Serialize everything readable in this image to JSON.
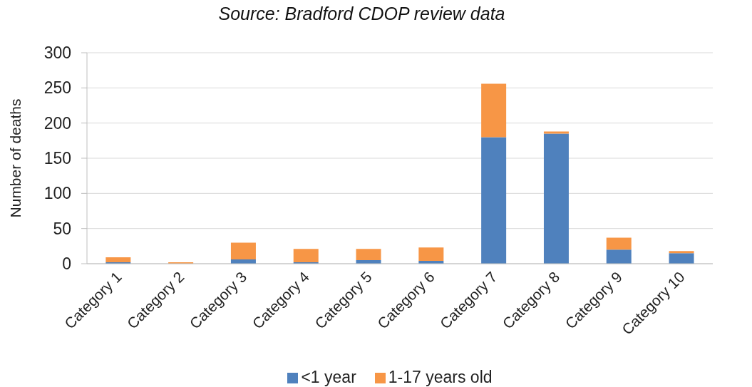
{
  "chart_data": {
    "type": "bar",
    "annotations": [
      "Source: Bradford CDOP review data"
    ],
    "ylabel": "Number of deaths",
    "categories": [
      "Category 1",
      "Category 2",
      "Category 3",
      "Category 4",
      "Category 5",
      "Category 6",
      "Category 7",
      "Category 8",
      "Category 9",
      "Category 10"
    ],
    "series": [
      {
        "name": "<1 year",
        "color": "#4f81bd",
        "values": [
          2,
          0,
          6,
          2,
          5,
          4,
          180,
          185,
          20,
          15
        ]
      },
      {
        "name": "1-17 years old",
        "color": "#f79646",
        "values": [
          7,
          2,
          24,
          19,
          16,
          19,
          76,
          3,
          17,
          3
        ]
      }
    ],
    "stacked": true,
    "ylim": [
      0,
      300
    ],
    "yticks": [
      0,
      50,
      100,
      150,
      200,
      250,
      300
    ],
    "grid": "y",
    "legend": "bottom"
  }
}
